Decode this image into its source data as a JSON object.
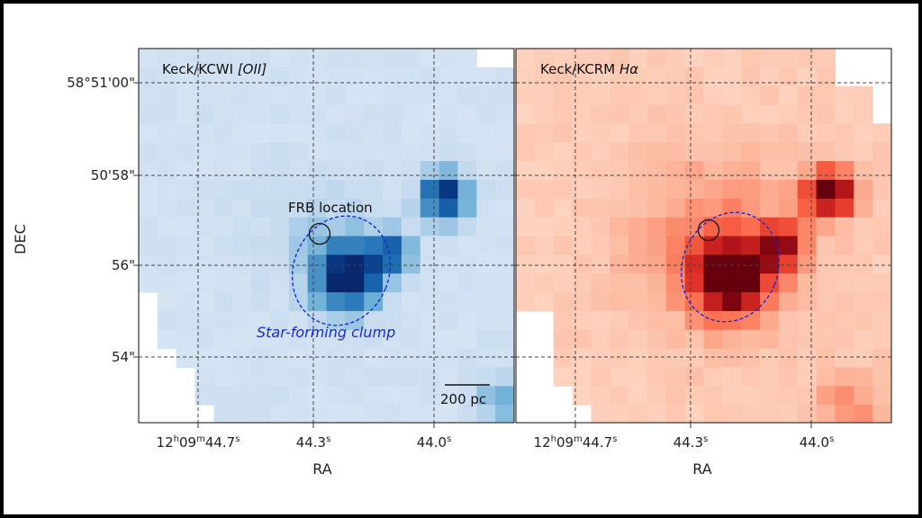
{
  "figure": {
    "panels": [
      {
        "id": "oii",
        "title_prefix": "Keck/KCWI ",
        "title_emph": "[OII]",
        "colormap": "blue"
      },
      {
        "id": "ha",
        "title_prefix": "Keck/KCRM ",
        "title_emph": "Hα",
        "colormap": "red"
      }
    ],
    "annotations": {
      "frb_label": "FRB location",
      "clump_label": "Star-forming clump",
      "scale_bar_label": "200 pc"
    },
    "axes": {
      "xlabel": "RA",
      "ylabel": "DEC",
      "y_ticks": [
        "58°51'00\"",
        "50'58\"",
        "56\"",
        "54\""
      ],
      "x_ticks": [
        {
          "base": "12",
          "h": "h",
          "min": "09",
          "m": "m",
          "sec": "44.7",
          "s": "s"
        },
        {
          "base": "",
          "h": "",
          "min": "",
          "m": "",
          "sec": "44.3",
          "s": "s"
        },
        {
          "base": "",
          "h": "",
          "min": "",
          "m": "",
          "sec": "44.0",
          "s": "s"
        }
      ]
    },
    "colors": {
      "clump": "#1a2bd6",
      "frb": "#111111"
    }
  }
}
